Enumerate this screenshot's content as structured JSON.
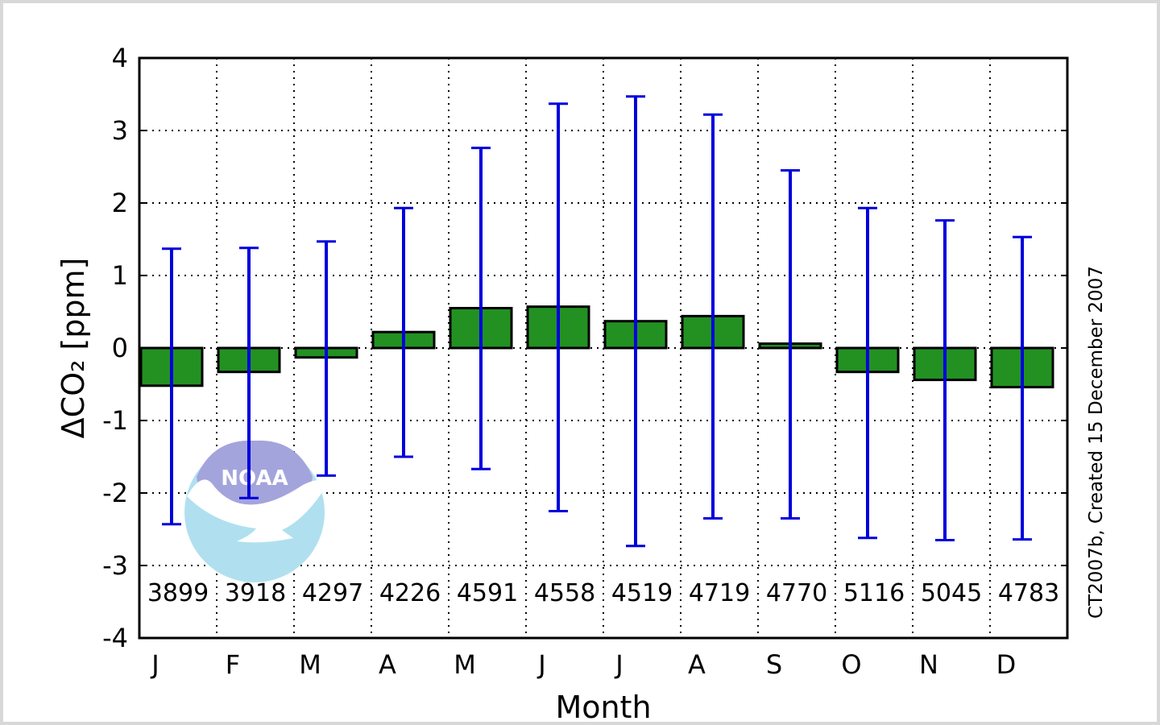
{
  "chart_data": {
    "type": "bar",
    "categories": [
      "J",
      "F",
      "M",
      "A",
      "M",
      "J",
      "J",
      "A",
      "S",
      "O",
      "N",
      "D"
    ],
    "values": [
      -0.52,
      -0.33,
      -0.13,
      0.22,
      0.55,
      0.57,
      0.37,
      0.44,
      0.06,
      -0.33,
      -0.44,
      -0.54
    ],
    "error_upper": [
      1.37,
      1.38,
      1.47,
      1.93,
      2.76,
      3.37,
      3.47,
      3.22,
      2.45,
      1.93,
      1.76,
      1.53
    ],
    "error_lower": [
      -2.43,
      -2.07,
      -1.76,
      -1.5,
      -1.67,
      -2.25,
      -2.73,
      -2.35,
      -2.35,
      -2.62,
      -2.65,
      -2.64
    ],
    "counts": [
      "3899",
      "3918",
      "4297",
      "4226",
      "4591",
      "4558",
      "4519",
      "4719",
      "4770",
      "5116",
      "5045",
      "4783"
    ],
    "xlabel": "Month",
    "ylabel": "ΔCO₂ [ppm]",
    "ylim": [
      -4,
      4
    ],
    "yticks": [
      "-4",
      "-3",
      "-2",
      "-1",
      "0",
      "1",
      "2",
      "3",
      "4"
    ],
    "grid": true,
    "colors": {
      "bar": "#229122",
      "bar_edge": "#000000",
      "error": "#0000dd",
      "frame": "#000000"
    }
  },
  "credit": "CT2007b, Created 15 December 2007",
  "logo": {
    "text": "NOAA",
    "top_color": "#a4a4dc",
    "bottom_color": "#b0e0ef"
  }
}
